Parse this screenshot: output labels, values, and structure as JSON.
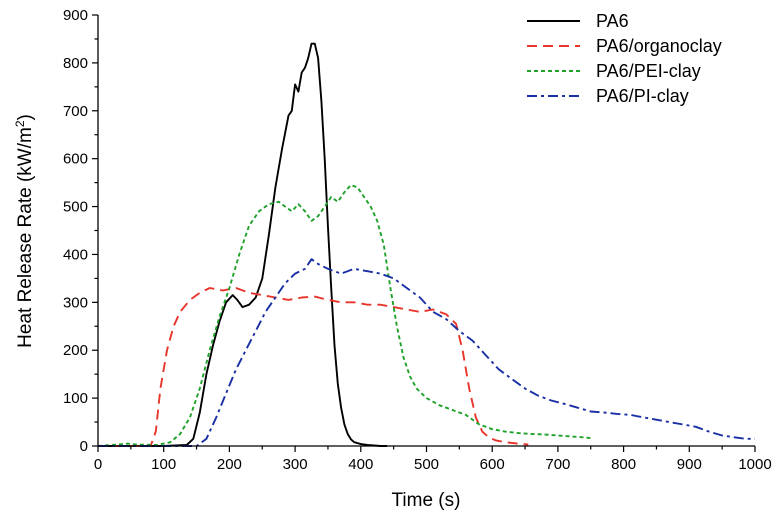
{
  "chart_data": {
    "type": "line",
    "xlabel": "Time (s)",
    "ylabel": "Heat Release Rate (kW/m",
    "ylabel_sup": "2",
    "ylabel_close": ")",
    "xlim": [
      0,
      1000
    ],
    "ylim": [
      0,
      900
    ],
    "xticks": [
      "0",
      "100",
      "200",
      "300",
      "400",
      "500",
      "600",
      "700",
      "800",
      "900",
      "1000"
    ],
    "yticks": [
      "0",
      "100",
      "200",
      "300",
      "400",
      "500",
      "600",
      "700",
      "800",
      "900"
    ],
    "grid": false,
    "legend_position": "top-right",
    "series": [
      {
        "name": "PA6",
        "color": "#000000",
        "dash": "solid",
        "x": [
          0,
          100,
          135,
          145,
          155,
          165,
          175,
          185,
          195,
          205,
          212,
          220,
          230,
          240,
          250,
          260,
          270,
          280,
          290,
          295,
          300,
          305,
          310,
          315,
          320,
          325,
          330,
          335,
          340,
          345,
          350,
          355,
          360,
          365,
          370,
          375,
          380,
          385,
          390,
          400,
          410,
          420,
          430,
          440
        ],
        "y": [
          0,
          0,
          2,
          15,
          70,
          150,
          210,
          260,
          300,
          315,
          305,
          290,
          295,
          310,
          350,
          440,
          540,
          620,
          690,
          700,
          755,
          740,
          780,
          790,
          810,
          840,
          840,
          810,
          720,
          600,
          460,
          330,
          210,
          130,
          80,
          45,
          25,
          14,
          8,
          4,
          2,
          1,
          0,
          0
        ]
      },
      {
        "name": "PA6/organoclay",
        "color": "#e8352b",
        "dash": "10 6",
        "x": [
          0,
          80,
          88,
          95,
          105,
          115,
          125,
          140,
          155,
          170,
          190,
          210,
          230,
          250,
          270,
          290,
          310,
          330,
          350,
          370,
          390,
          410,
          430,
          450,
          470,
          490,
          510,
          530,
          545,
          555,
          565,
          575,
          585,
          595,
          605,
          620,
          640,
          655
        ],
        "y": [
          0,
          0,
          30,
          120,
          200,
          250,
          280,
          305,
          320,
          330,
          325,
          330,
          320,
          315,
          310,
          305,
          310,
          312,
          305,
          300,
          300,
          295,
          295,
          290,
          285,
          280,
          285,
          275,
          255,
          200,
          120,
          60,
          30,
          18,
          12,
          8,
          5,
          3
        ]
      },
      {
        "name": "PA6/PEI-clay",
        "color": "#1fa12a",
        "dash": "4 3",
        "x": [
          0,
          30,
          45,
          60,
          90,
          110,
          125,
          140,
          155,
          170,
          185,
          200,
          215,
          230,
          245,
          260,
          275,
          285,
          295,
          305,
          315,
          325,
          335,
          345,
          355,
          365,
          375,
          385,
          395,
          405,
          415,
          425,
          435,
          445,
          455,
          465,
          475,
          485,
          500,
          520,
          540,
          560,
          580,
          600,
          620,
          640,
          660,
          680,
          700,
          720,
          740,
          752
        ],
        "y": [
          0,
          3,
          5,
          3,
          2,
          8,
          25,
          60,
          120,
          200,
          270,
          330,
          400,
          460,
          490,
          505,
          510,
          500,
          490,
          505,
          490,
          470,
          480,
          500,
          520,
          510,
          530,
          545,
          540,
          520,
          500,
          470,
          420,
          330,
          250,
          185,
          145,
          120,
          100,
          85,
          75,
          65,
          45,
          35,
          30,
          27,
          25,
          24,
          22,
          20,
          18,
          16
        ]
      },
      {
        "name": "PA6/PI-clay",
        "color": "#1a2fa3",
        "dash": "10 4 3 4",
        "x": [
          0,
          150,
          165,
          180,
          195,
          210,
          225,
          240,
          255,
          270,
          285,
          300,
          315,
          325,
          335,
          350,
          370,
          390,
          410,
          430,
          450,
          470,
          490,
          510,
          530,
          550,
          570,
          590,
          610,
          630,
          650,
          670,
          690,
          710,
          730,
          750,
          770,
          790,
          810,
          830,
          850,
          870,
          890,
          910,
          930,
          950,
          970,
          985,
          1000
        ],
        "y": [
          0,
          0,
          15,
          60,
          110,
          160,
          200,
          240,
          280,
          310,
          340,
          360,
          370,
          390,
          380,
          370,
          360,
          370,
          365,
          360,
          350,
          330,
          310,
          280,
          265,
          240,
          220,
          190,
          160,
          140,
          120,
          105,
          95,
          88,
          80,
          72,
          70,
          67,
          65,
          60,
          55,
          50,
          45,
          40,
          30,
          22,
          18,
          15,
          15
        ]
      }
    ]
  }
}
